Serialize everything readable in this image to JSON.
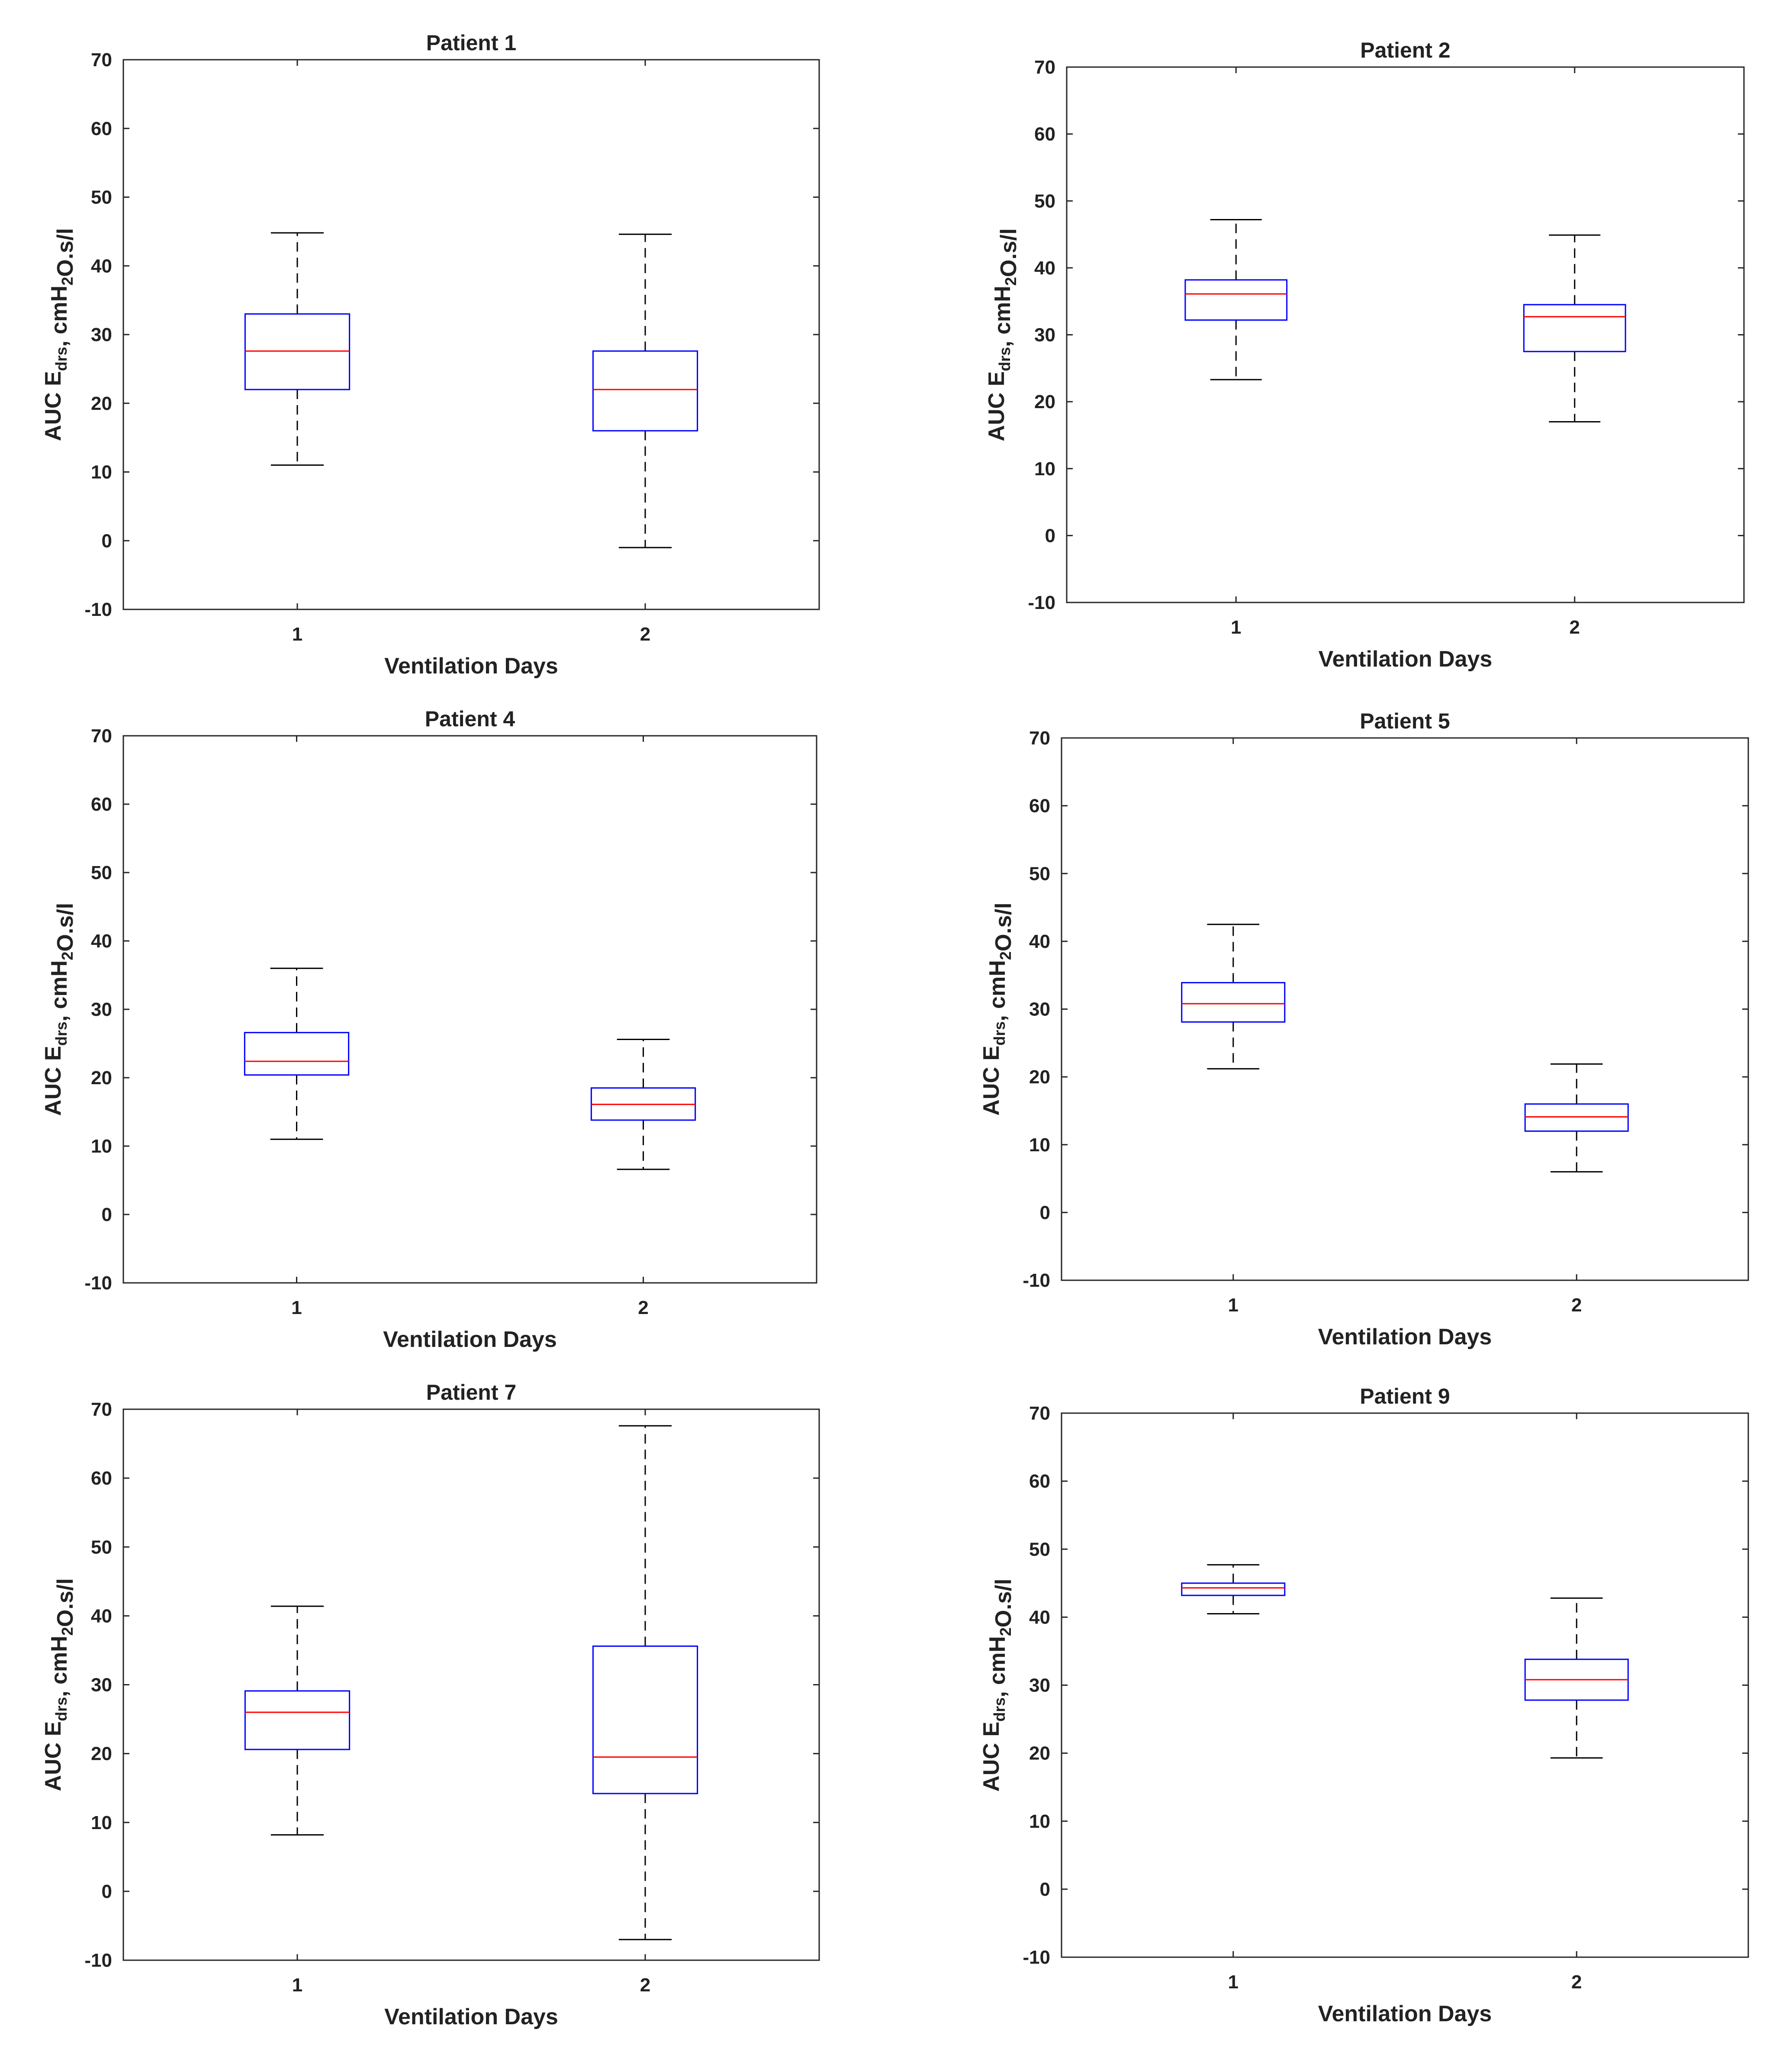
{
  "chart_data": [
    {
      "type": "box",
      "title": "Patient 1",
      "xlabel": "Ventilation Days",
      "ylabel": {
        "prefix": "AUC E",
        "sub1": "drs",
        "mid": ", cmH",
        "sub2": "2",
        "suffix": "O.s/l"
      },
      "ylim": [
        -10,
        70
      ],
      "yticks": [
        "-10",
        "0",
        "10",
        "20",
        "30",
        "40",
        "50",
        "60",
        "70"
      ],
      "categories": [
        "1",
        "2"
      ],
      "boxes": [
        {
          "category": "1",
          "whisker_low": 11,
          "q1": 22,
          "median": 27.6,
          "q3": 33,
          "whisker_high": 44.8
        },
        {
          "category": "2",
          "whisker_low": -1,
          "q1": 16,
          "median": 22,
          "q3": 27.6,
          "whisker_high": 44.6
        }
      ]
    },
    {
      "type": "box",
      "title": "Patient 2",
      "xlabel": "Ventilation Days",
      "ylabel": {
        "prefix": "AUC E",
        "sub1": "drs",
        "mid": ", cmH",
        "sub2": "2",
        "suffix": "O.s/l"
      },
      "ylim": [
        -10,
        70
      ],
      "yticks": [
        "-10",
        "0",
        "10",
        "20",
        "30",
        "40",
        "50",
        "60",
        "70"
      ],
      "categories": [
        "1",
        "2"
      ],
      "boxes": [
        {
          "category": "1",
          "whisker_low": 23.3,
          "q1": 32.2,
          "median": 36.1,
          "q3": 38.2,
          "whisker_high": 47.2
        },
        {
          "category": "2",
          "whisker_low": 17,
          "q1": 27.5,
          "median": 32.7,
          "q3": 34.5,
          "whisker_high": 44.9
        }
      ]
    },
    {
      "type": "box",
      "title": "Patient 4",
      "xlabel": "Ventilation Days",
      "ylabel": {
        "prefix": "AUC E",
        "sub1": "drs",
        "mid": ", cmH",
        "sub2": "2",
        "suffix": "O.s/l"
      },
      "ylim": [
        -10,
        70
      ],
      "yticks": [
        "-10",
        "0",
        "10",
        "20",
        "30",
        "40",
        "50",
        "60",
        "70"
      ],
      "categories": [
        "1",
        "2"
      ],
      "boxes": [
        {
          "category": "1",
          "whisker_low": 11,
          "q1": 20.4,
          "median": 22.4,
          "q3": 26.6,
          "whisker_high": 36
        },
        {
          "category": "2",
          "whisker_low": 6.6,
          "q1": 13.8,
          "median": 16.1,
          "q3": 18.5,
          "whisker_high": 25.6
        }
      ]
    },
    {
      "type": "box",
      "title": "Patient 5",
      "xlabel": "Ventilation Days",
      "ylabel": {
        "prefix": "AUC E",
        "sub1": "drs",
        "mid": ", cmH",
        "sub2": "2",
        "suffix": "O.s/l"
      },
      "ylim": [
        -10,
        70
      ],
      "yticks": [
        "-10",
        "0",
        "10",
        "20",
        "30",
        "40",
        "50",
        "60",
        "70"
      ],
      "categories": [
        "1",
        "2"
      ],
      "boxes": [
        {
          "category": "1",
          "whisker_low": 21.2,
          "q1": 28.1,
          "median": 30.8,
          "q3": 33.9,
          "whisker_high": 42.5
        },
        {
          "category": "2",
          "whisker_low": 6,
          "q1": 12,
          "median": 14.1,
          "q3": 16,
          "whisker_high": 21.9
        }
      ]
    },
    {
      "type": "box",
      "title": "Patient 7",
      "xlabel": "Ventilation Days",
      "ylabel": {
        "prefix": "AUC E",
        "sub1": "drs",
        "mid": ", cmH",
        "sub2": "2",
        "suffix": "O.s/l"
      },
      "ylim": [
        -10,
        70
      ],
      "yticks": [
        "-10",
        "0",
        "10",
        "20",
        "30",
        "40",
        "50",
        "60",
        "70"
      ],
      "categories": [
        "1",
        "2"
      ],
      "boxes": [
        {
          "category": "1",
          "whisker_low": 8.2,
          "q1": 20.6,
          "median": 26,
          "q3": 29.1,
          "whisker_high": 41.4
        },
        {
          "category": "2",
          "whisker_low": -7,
          "q1": 14.2,
          "median": 19.5,
          "q3": 35.6,
          "whisker_high": 67.6
        }
      ]
    },
    {
      "type": "box",
      "title": "Patient 9",
      "xlabel": "Ventilation Days",
      "ylabel": {
        "prefix": "AUC E",
        "sub1": "drs",
        "mid": ", cmH",
        "sub2": "2",
        "suffix": "O.s/l"
      },
      "ylim": [
        -10,
        70
      ],
      "yticks": [
        "-10",
        "0",
        "10",
        "20",
        "30",
        "40",
        "50",
        "60",
        "70"
      ],
      "categories": [
        "1",
        "2"
      ],
      "boxes": [
        {
          "category": "1",
          "whisker_low": 40.5,
          "q1": 43.2,
          "median": 44.3,
          "q3": 45,
          "whisker_high": 47.7
        },
        {
          "category": "2",
          "whisker_low": 19.3,
          "q1": 27.8,
          "median": 30.8,
          "q3": 33.8,
          "whisker_high": 42.8
        }
      ]
    }
  ],
  "colors": {
    "box": "#0000ff",
    "median": "#ff0000",
    "whisker": "#000000",
    "axes": "#262626"
  }
}
